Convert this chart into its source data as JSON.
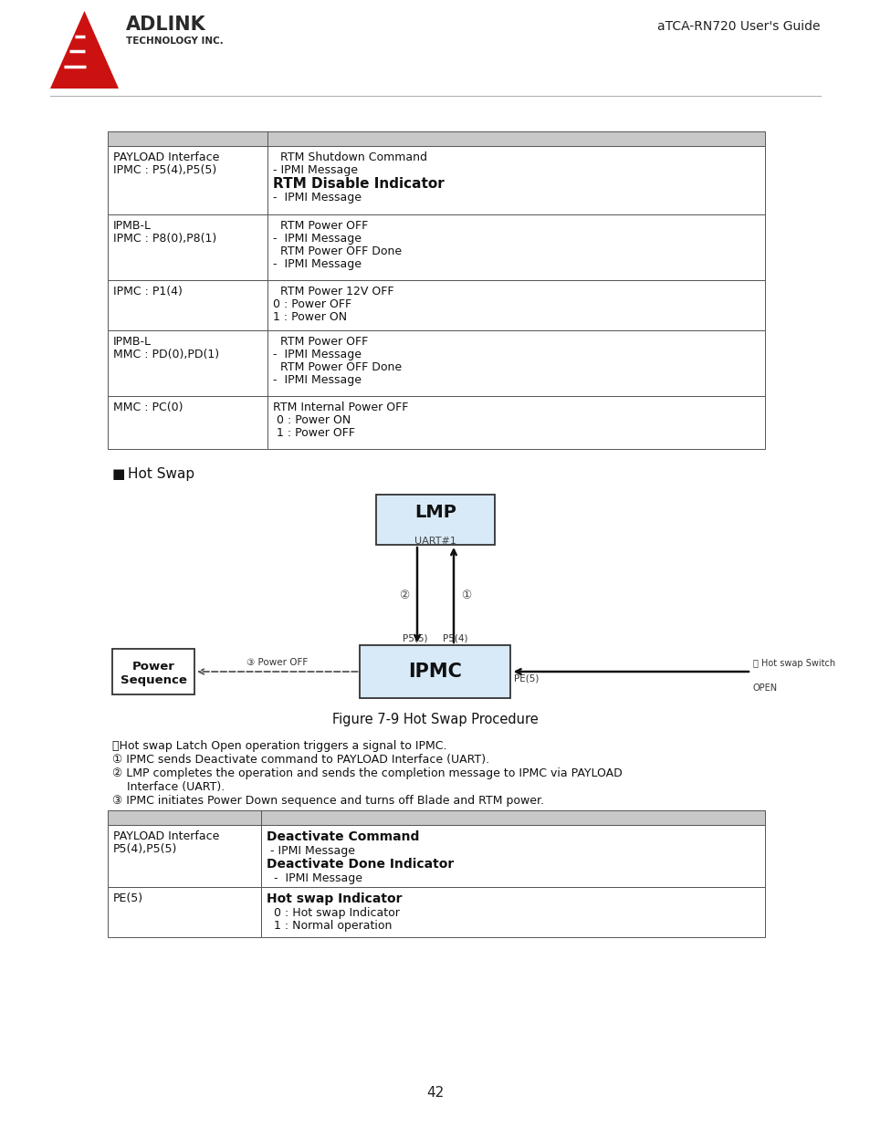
{
  "title_right": "aTCA-RN720 User's Guide",
  "page_number": "42",
  "bg_color": "#ffffff",
  "table_header_bg": "#d0d0d0",
  "table1_rows": [
    {
      "col1": "PAYLOAD Interface\nIPMC : P5(4),P5(5)",
      "col2_lines": [
        {
          "text": "  RTM Shutdown Command",
          "bold": false,
          "size": 9
        },
        {
          "text": "- IPMI Message",
          "bold": false,
          "size": 9
        },
        {
          "text": "RTM Disable Indicator",
          "bold": true,
          "size": 11
        },
        {
          "text": "-  IPMI Message",
          "bold": false,
          "size": 9
        }
      ]
    },
    {
      "col1": "IPMB-L\nIPMC : P8(0),P8(1)",
      "col2_lines": [
        {
          "text": "  RTM Power OFF",
          "bold": false,
          "size": 9
        },
        {
          "text": "-  IPMI Message",
          "bold": false,
          "size": 9
        },
        {
          "text": "  RTM Power OFF Done",
          "bold": false,
          "size": 9
        },
        {
          "text": "-  IPMI Message",
          "bold": false,
          "size": 9
        }
      ]
    },
    {
      "col1": "IPMC : P1(4)",
      "col2_lines": [
        {
          "text": "  RTM Power 12V OFF",
          "bold": false,
          "size": 9
        },
        {
          "text": "0 : Power OFF",
          "bold": false,
          "size": 9
        },
        {
          "text": "1 : Power ON",
          "bold": false,
          "size": 9
        }
      ]
    },
    {
      "col1": "IPMB-L\nMMC : PD(0),PD(1)",
      "col2_lines": [
        {
          "text": "  RTM Power OFF",
          "bold": false,
          "size": 9
        },
        {
          "text": "-  IPMI Message",
          "bold": false,
          "size": 9
        },
        {
          "text": "  RTM Power OFF Done",
          "bold": false,
          "size": 9
        },
        {
          "text": "-  IPMI Message",
          "bold": false,
          "size": 9
        }
      ]
    },
    {
      "col1": "MMC : PC(0)",
      "col2_lines": [
        {
          "text": "RTM Internal Power OFF",
          "bold": false,
          "size": 9
        },
        {
          "text": " 0 : Power ON",
          "bold": false,
          "size": 9
        },
        {
          "text": " 1 : Power OFF",
          "bold": false,
          "size": 9
        }
      ]
    }
  ],
  "figure_caption": "Figure 7-9 Hot Swap Procedure",
  "notes": [
    "⑵Hot swap Latch Open operation triggers a signal to IPMC.",
    "① IPMC sends Deactivate command to PAYLOAD Interface (UART).",
    "② LMP completes the operation and sends the completion message to IPMC via PAYLOAD\n    Interface (UART).",
    "③ IPMC initiates Power Down sequence and turns off Blade and RTM power."
  ],
  "table2_rows": [
    {
      "col1": "PAYLOAD Interface\nP5(4),P5(5)",
      "col2_lines": [
        {
          "text": "Deactivate Command",
          "bold": true,
          "size": 10
        },
        {
          "text": " - IPMI Message",
          "bold": false,
          "size": 9
        },
        {
          "text": "Deactivate Done Indicator",
          "bold": true,
          "size": 10
        },
        {
          "text": "  -  IPMI Message",
          "bold": false,
          "size": 9
        }
      ]
    },
    {
      "col1": "PE(5)",
      "col2_lines": [
        {
          "text": "Hot swap Indicator",
          "bold": true,
          "size": 10
        },
        {
          "text": "  0 : Hot swap Indicator",
          "bold": false,
          "size": 9
        },
        {
          "text": "  1 : Normal operation",
          "bold": false,
          "size": 9
        }
      ]
    }
  ]
}
